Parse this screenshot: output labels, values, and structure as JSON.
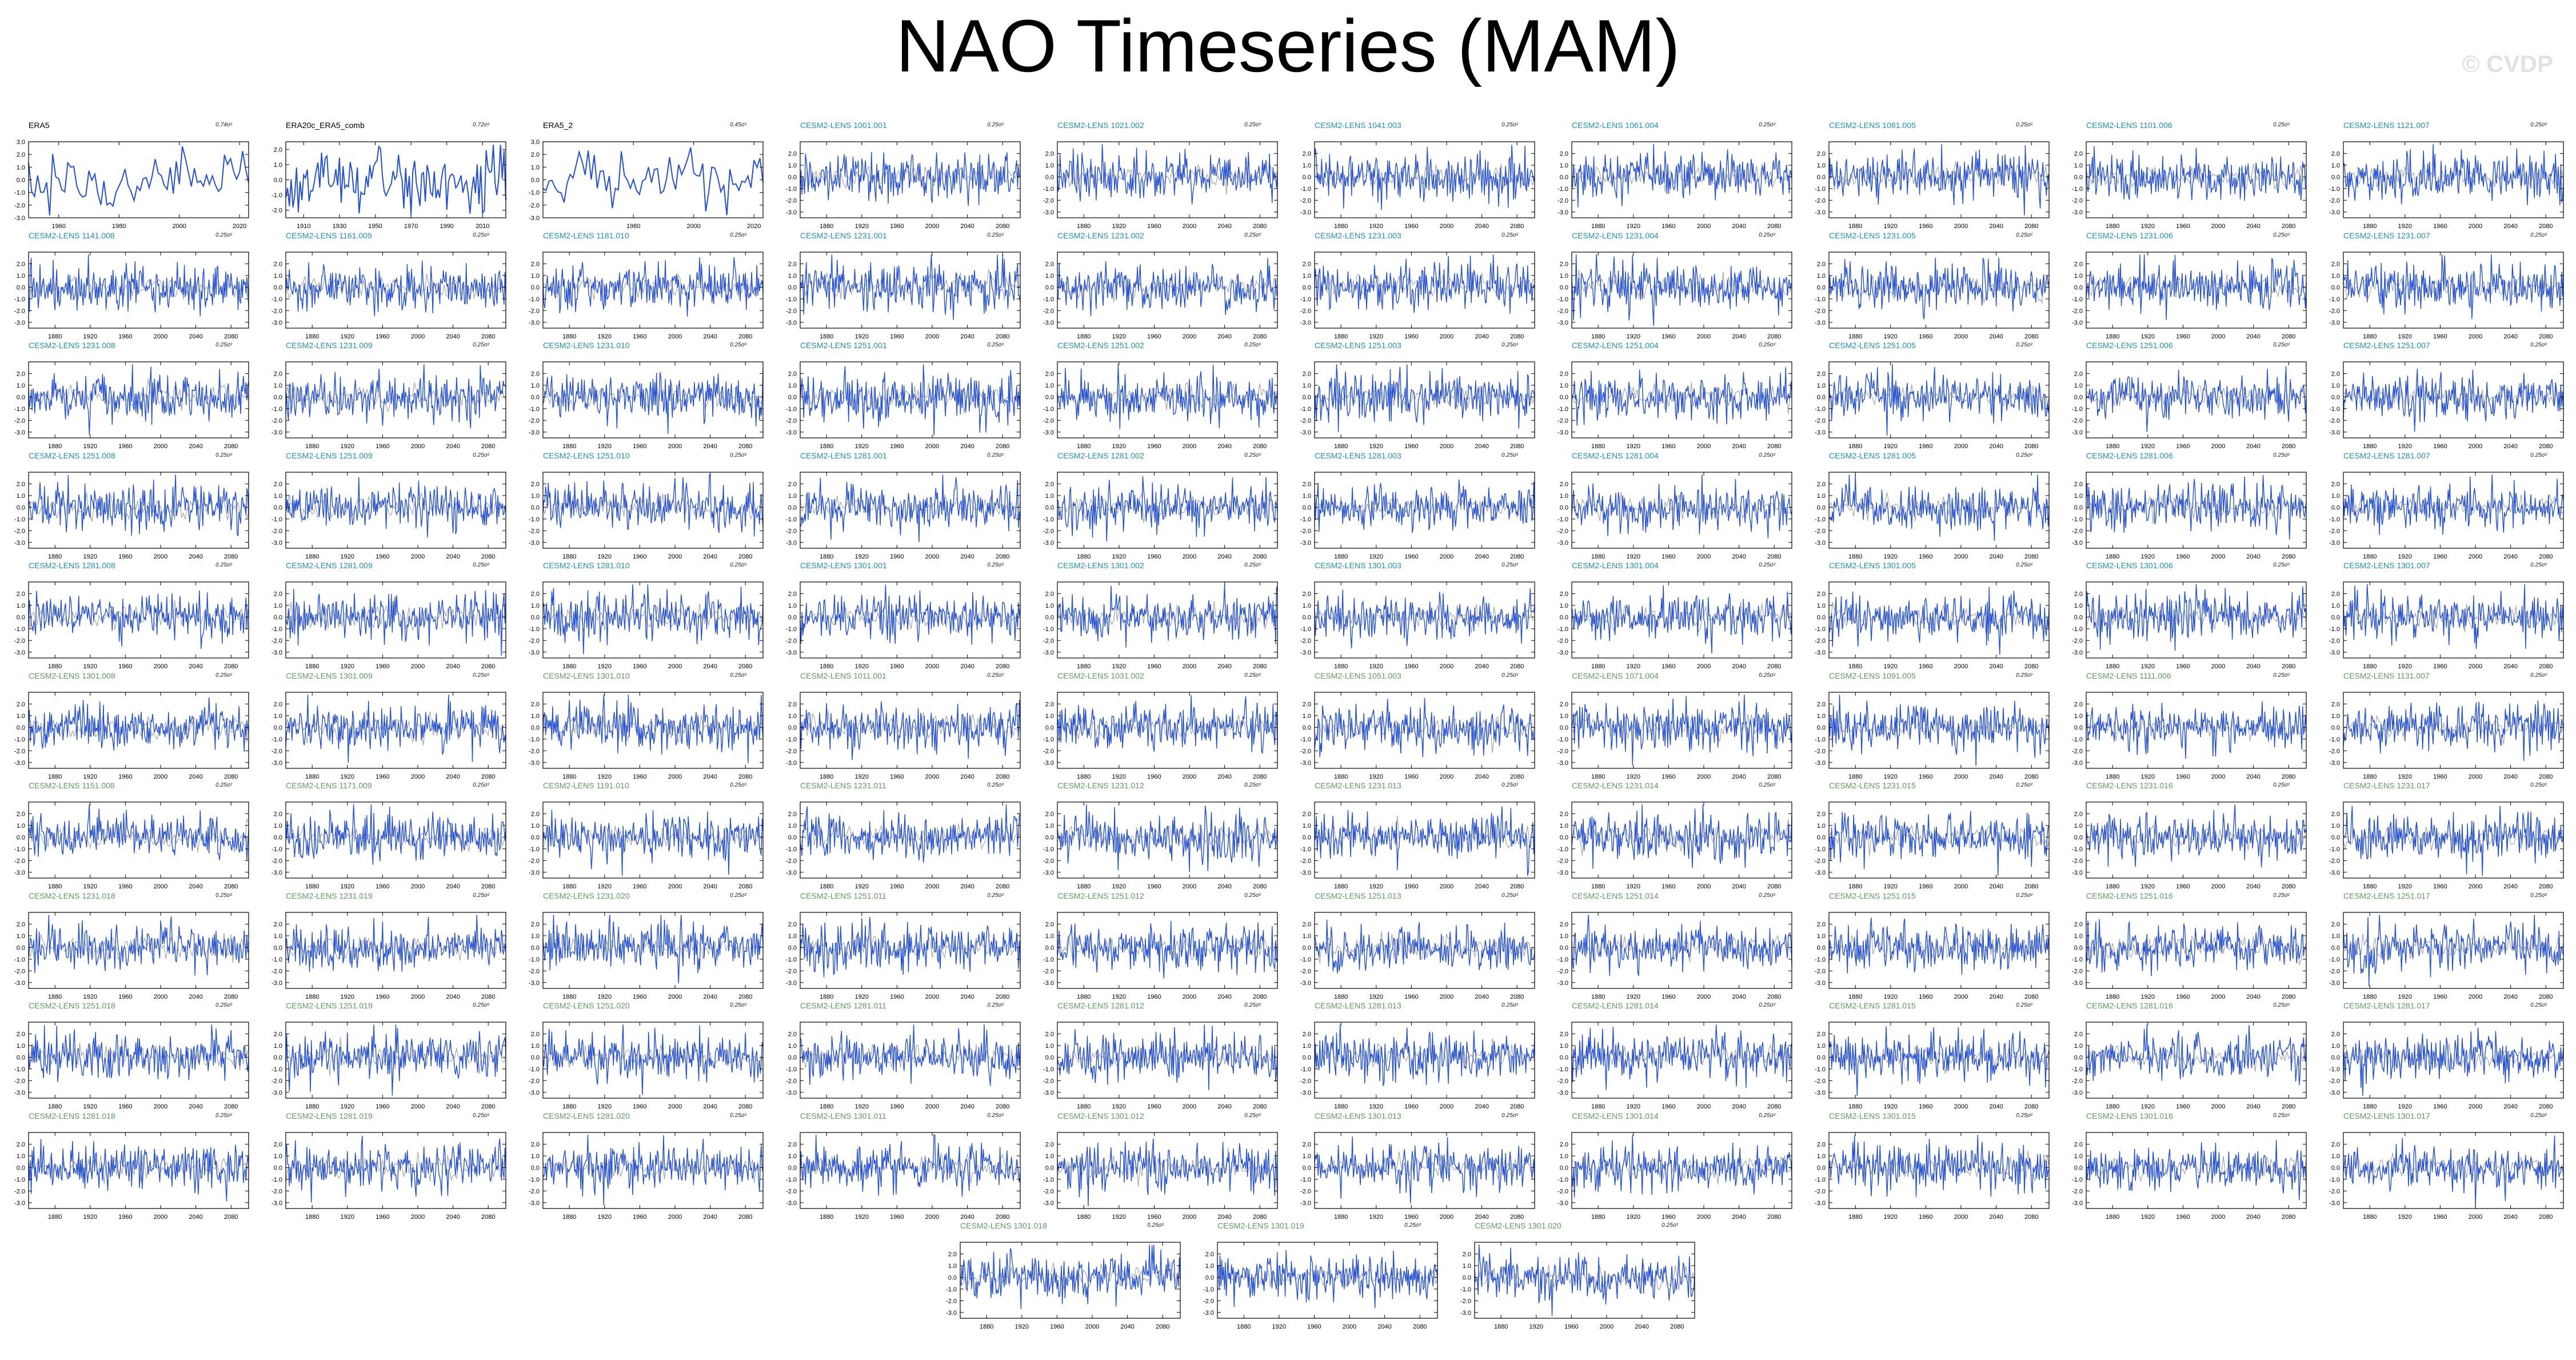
{
  "title": "NAO Timeseries (MAM)",
  "watermark": "© CVDP",
  "colors": {
    "series": "#2350d6",
    "ensemble_spread": "#a8a8a8",
    "title_obs": "#000000",
    "title_lens_1": "#1f8fb6",
    "title_lens_2": "#5f9a5f",
    "axis": "#000000"
  },
  "chart_data": {
    "type": "line",
    "grid": false,
    "panels_obs": [
      {
        "title": "ERA5",
        "variance": "0.74σ²",
        "xlim": [
          1950,
          2023
        ],
        "ylim": [
          -3.0,
          3.0
        ],
        "xticks": [
          1960,
          1980,
          2000,
          2020
        ],
        "yticks": [
          3.0,
          2.0,
          1.0,
          0.0,
          -1.0,
          -2.0,
          -3.0
        ]
      },
      {
        "title": "ERA20c_ERA5_comb",
        "variance": "0.72σ²",
        "xlim": [
          1900,
          2023
        ],
        "ylim": [
          -2.5,
          2.5
        ],
        "xticks": [
          1910,
          1930,
          1950,
          1970,
          1990,
          2010
        ],
        "yticks": [
          2.0,
          1.0,
          0.0,
          -1.0,
          -2.0
        ]
      },
      {
        "title": "ERA5_2",
        "variance": "0.45σ²",
        "xlim": [
          1950,
          2023
        ],
        "ylim": [
          -3.0,
          3.0
        ],
        "xticks": [
          1980,
          2000,
          2020
        ],
        "yticks": [
          3.0,
          2.0,
          1.0,
          0.0,
          -1.0,
          -2.0,
          -3.0
        ]
      }
    ],
    "lens": {
      "xlim": [
        1850,
        2100
      ],
      "xticks": [
        1880,
        1920,
        1960,
        2000,
        2040,
        2080
      ],
      "ylim": [
        -3.5,
        3.0
      ],
      "yticks": [
        2.0,
        1.0,
        0.0,
        -1.0,
        -2.0,
        -3.0
      ],
      "variance_label": "0.25σ²",
      "member_titles": [
        "CESM2-LENS 1001.001",
        "CESM2-LENS 1021.002",
        "CESM2-LENS 1041.003",
        "CESM2-LENS 1061.004",
        "CESM2-LENS 1081.005",
        "CESM2-LENS 1101.006",
        "CESM2-LENS 1121.007",
        "CESM2-LENS 1141.008",
        "CESM2-LENS 1161.009",
        "CESM2-LENS 1181.010",
        "CESM2-LENS 1231.001",
        "CESM2-LENS 1231.002",
        "CESM2-LENS 1231.003",
        "CESM2-LENS 1231.004",
        "CESM2-LENS 1231.005",
        "CESM2-LENS 1231.006",
        "CESM2-LENS 1231.007",
        "CESM2-LENS 1231.008",
        "CESM2-LENS 1231.009",
        "CESM2-LENS 1231.010",
        "CESM2-LENS 1251.001",
        "CESM2-LENS 1251.002",
        "CESM2-LENS 1251.003",
        "CESM2-LENS 1251.004",
        "CESM2-LENS 1251.005",
        "CESM2-LENS 1251.006",
        "CESM2-LENS 1251.007",
        "CESM2-LENS 1251.008",
        "CESM2-LENS 1251.009",
        "CESM2-LENS 1251.010",
        "CESM2-LENS 1281.001",
        "CESM2-LENS 1281.002",
        "CESM2-LENS 1281.003",
        "CESM2-LENS 1281.004",
        "CESM2-LENS 1281.005",
        "CESM2-LENS 1281.006",
        "CESM2-LENS 1281.007",
        "CESM2-LENS 1281.008",
        "CESM2-LENS 1281.009",
        "CESM2-LENS 1281.010",
        "CESM2-LENS 1301.001",
        "CESM2-LENS 1301.002",
        "CESM2-LENS 1301.003",
        "CESM2-LENS 1301.004",
        "CESM2-LENS 1301.005",
        "CESM2-LENS 1301.006",
        "CESM2-LENS 1301.007",
        "CESM2-LENS 1301.008",
        "CESM2-LENS 1301.009",
        "CESM2-LENS 1301.010",
        "CESM2-LENS 1011.001",
        "CESM2-LENS 1031.002",
        "CESM2-LENS 1051.003",
        "CESM2-LENS 1071.004",
        "CESM2-LENS 1091.005",
        "CESM2-LENS 1111.006",
        "CESM2-LENS 1131.007",
        "CESM2-LENS 1151.008",
        "CESM2-LENS 1171.009",
        "CESM2-LENS 1191.010",
        "CESM2-LENS 1231.011",
        "CESM2-LENS 1231.012",
        "CESM2-LENS 1231.013",
        "CESM2-LENS 1231.014",
        "CESM2-LENS 1231.015",
        "CESM2-LENS 1231.016",
        "CESM2-LENS 1231.017",
        "CESM2-LENS 1231.018",
        "CESM2-LENS 1231.019",
        "CESM2-LENS 1231.020",
        "CESM2-LENS 1251.011",
        "CESM2-LENS 1251.012",
        "CESM2-LENS 1251.013",
        "CESM2-LENS 1251.014",
        "CESM2-LENS 1251.015",
        "CESM2-LENS 1251.016",
        "CESM2-LENS 1251.017",
        "CESM2-LENS 1251.018",
        "CESM2-LENS 1251.019",
        "CESM2-LENS 1251.020",
        "CESM2-LENS 1281.011",
        "CESM2-LENS 1281.012",
        "CESM2-LENS 1281.013",
        "CESM2-LENS 1281.014",
        "CESM2-LENS 1281.015",
        "CESM2-LENS 1281.016",
        "CESM2-LENS 1281.017",
        "CESM2-LENS 1281.018",
        "CESM2-LENS 1281.019",
        "CESM2-LENS 1281.020",
        "CESM2-LENS 1301.011",
        "CESM2-LENS 1301.012",
        "CESM2-LENS 1301.013",
        "CESM2-LENS 1301.014",
        "CESM2-LENS 1301.015",
        "CESM2-LENS 1301.016",
        "CESM2-LENS 1301.017",
        "CESM2-LENS 1301.018",
        "CESM2-LENS 1301.019",
        "CESM2-LENS 1301.020"
      ]
    }
  }
}
